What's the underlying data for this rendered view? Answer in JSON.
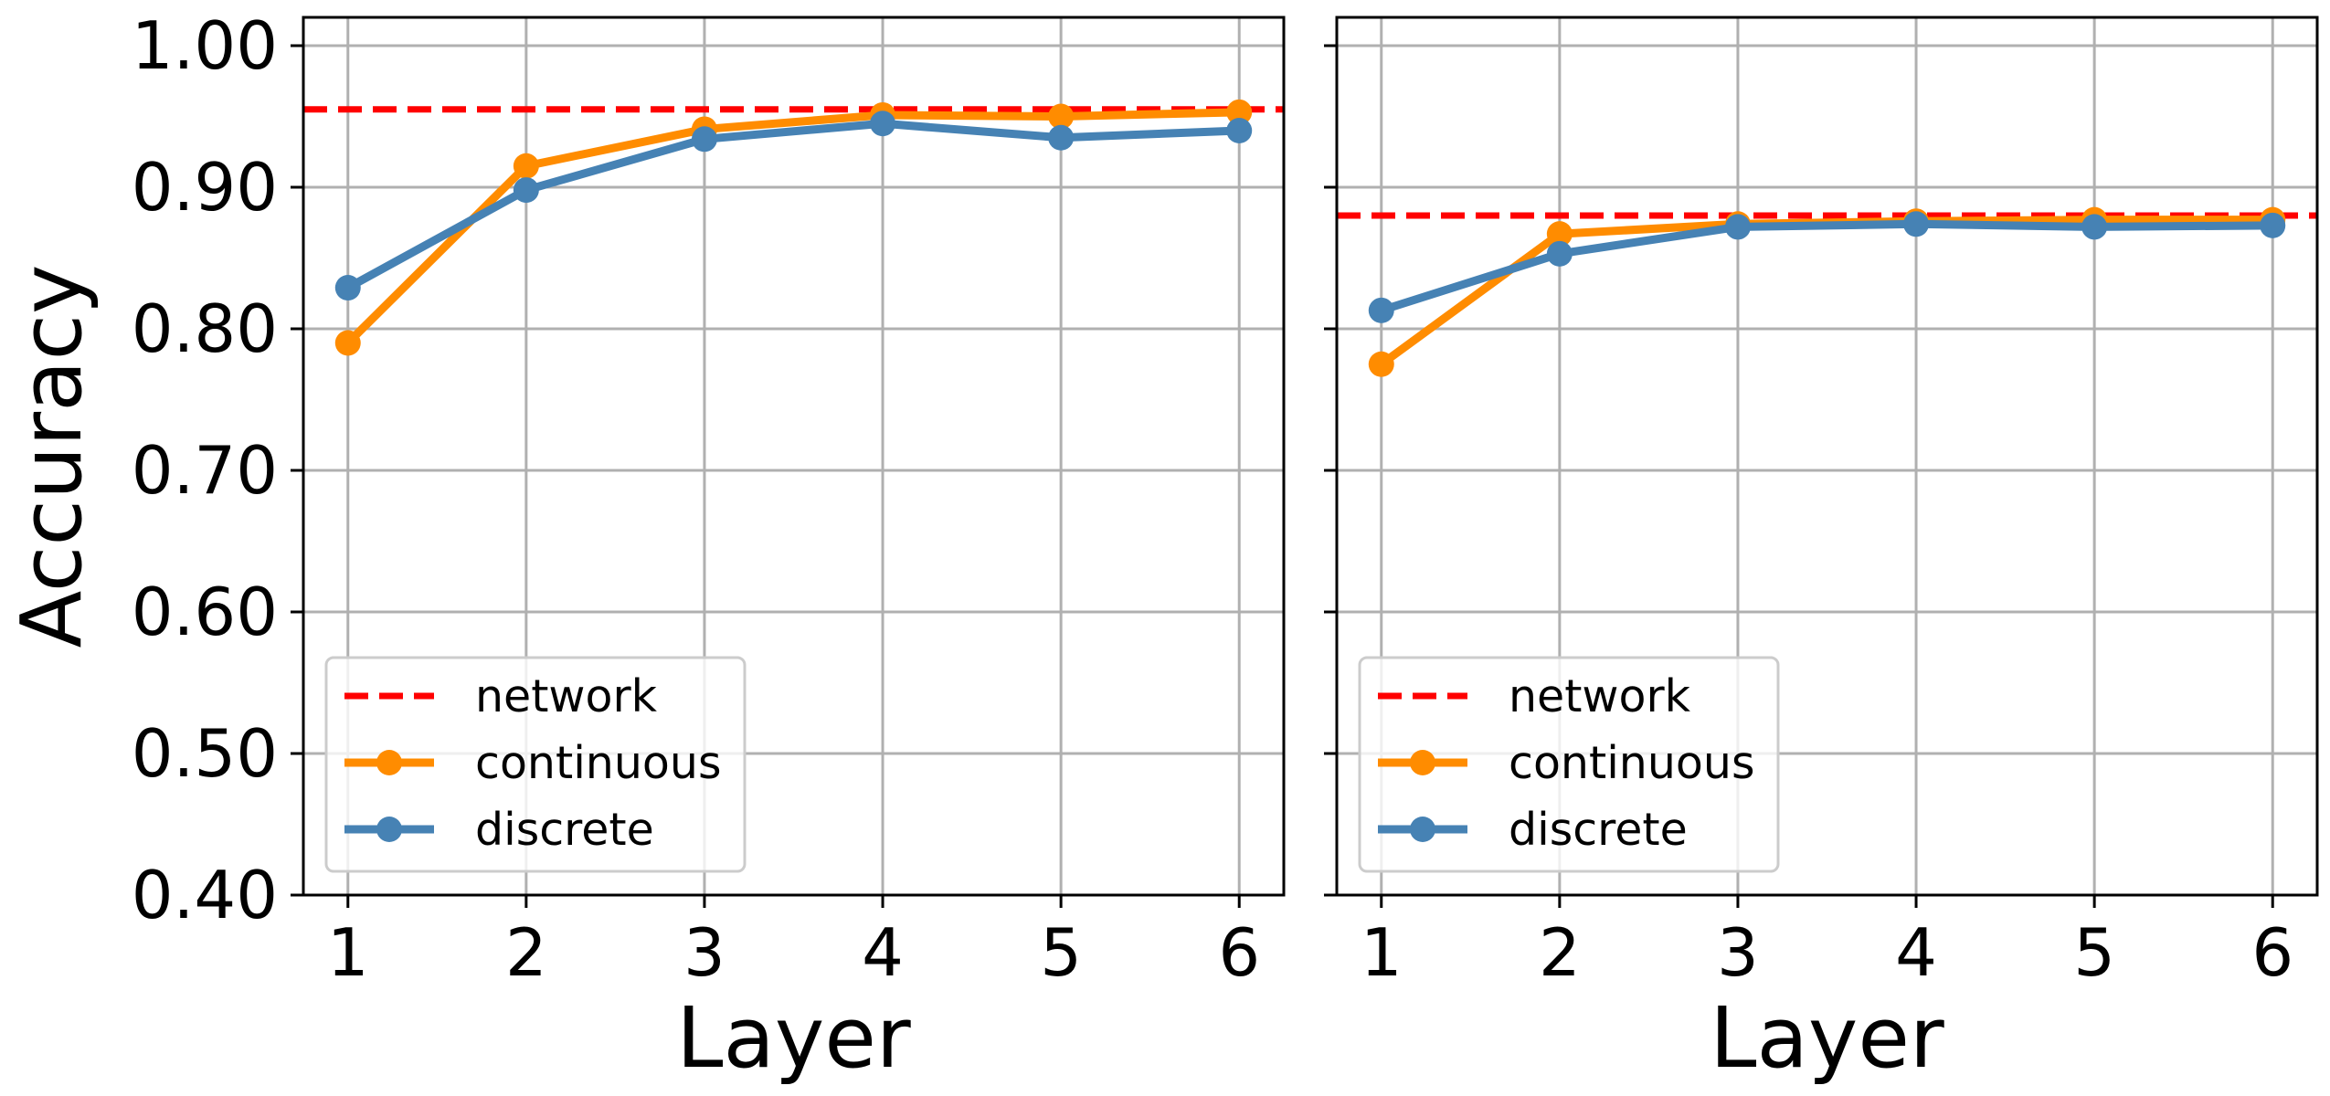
{
  "chart_data": [
    {
      "type": "line",
      "title": "",
      "xlabel": "Layer",
      "ylabel": "Accuracy",
      "x": [
        1,
        2,
        3,
        4,
        5,
        6
      ],
      "xticks": [
        "1",
        "2",
        "3",
        "4",
        "5",
        "6"
      ],
      "ylim": [
        0.4,
        1.02
      ],
      "yticks": [
        "0.40",
        "0.50",
        "0.60",
        "0.70",
        "0.80",
        "0.90",
        "1.00"
      ],
      "grid": true,
      "legend_position": "lower-left",
      "reference_line": {
        "name": "network",
        "value": 0.955,
        "color": "#ff0000",
        "style": "dashed"
      },
      "series": [
        {
          "name": "continuous",
          "color": "#ff8c00",
          "values": [
            0.79,
            0.915,
            0.941,
            0.951,
            0.95,
            0.953
          ]
        },
        {
          "name": "discrete",
          "color": "#4682b4",
          "values": [
            0.829,
            0.898,
            0.934,
            0.945,
            0.935,
            0.94
          ]
        }
      ]
    },
    {
      "type": "line",
      "title": "",
      "xlabel": "Layer",
      "ylabel": "",
      "x": [
        1,
        2,
        3,
        4,
        5,
        6
      ],
      "xticks": [
        "1",
        "2",
        "3",
        "4",
        "5",
        "6"
      ],
      "ylim": [
        0.4,
        1.02
      ],
      "yticks": [
        "",
        "",
        "",
        "",
        "",
        "",
        ""
      ],
      "grid": true,
      "legend_position": "lower-left",
      "reference_line": {
        "name": "network",
        "value": 0.88,
        "color": "#ff0000",
        "style": "dashed"
      },
      "series": [
        {
          "name": "continuous",
          "color": "#ff8c00",
          "values": [
            0.775,
            0.867,
            0.874,
            0.876,
            0.877,
            0.877
          ]
        },
        {
          "name": "discrete",
          "color": "#4682b4",
          "values": [
            0.813,
            0.853,
            0.872,
            0.874,
            0.872,
            0.873
          ]
        }
      ]
    }
  ]
}
